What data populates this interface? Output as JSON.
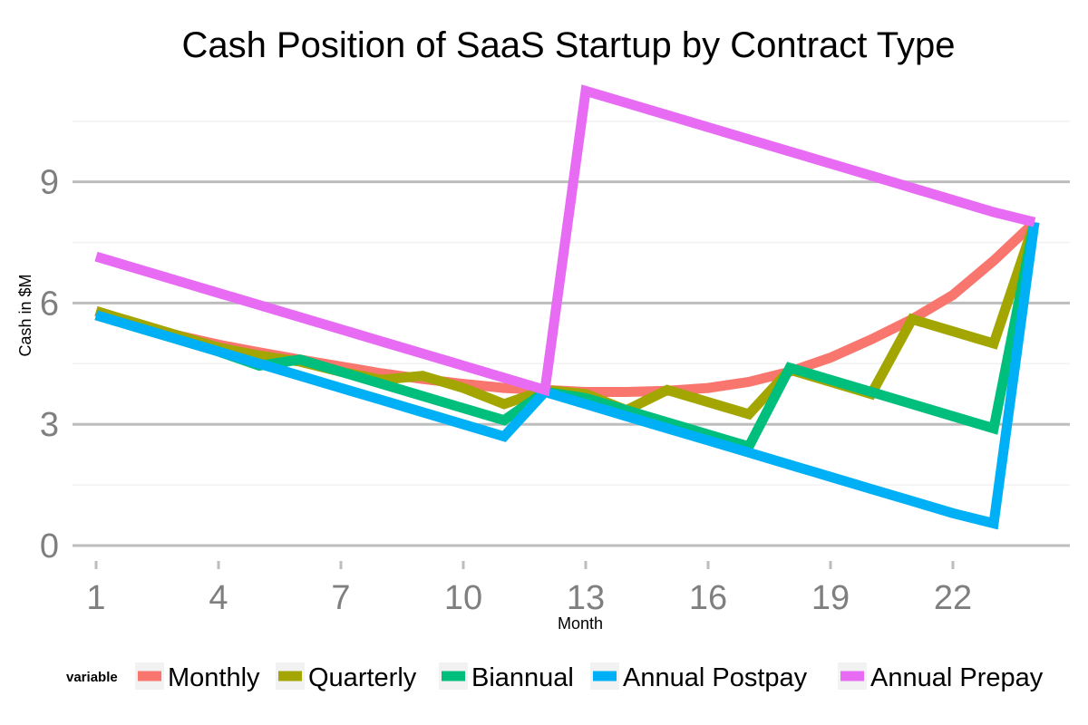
{
  "chart_data": {
    "type": "line",
    "title": "Cash Position of SaaS Startup by Contract Type",
    "xlabel": "Month",
    "ylabel": "Cash in $M",
    "xlim": [
      1,
      24
    ],
    "ylim": [
      0,
      11.3
    ],
    "xticks": [
      1,
      4,
      7,
      10,
      13,
      16,
      19,
      22
    ],
    "yticks": [
      0,
      3,
      6,
      9
    ],
    "minor_gridlines_y": [
      1.5,
      4.5,
      7.5,
      10.5
    ],
    "grid": true,
    "legend_title": "variable",
    "legend_position": "bottom",
    "x": [
      1,
      2,
      3,
      4,
      5,
      6,
      7,
      8,
      9,
      10,
      11,
      12,
      13,
      14,
      15,
      16,
      17,
      18,
      19,
      20,
      21,
      22,
      23,
      24
    ],
    "series": [
      {
        "name": "Monthly",
        "color": "#F8766D",
        "values": [
          5.8,
          5.48,
          5.2,
          4.97,
          4.78,
          4.6,
          4.43,
          4.26,
          4.12,
          4.0,
          3.9,
          3.85,
          3.8,
          3.8,
          3.83,
          3.9,
          4.05,
          4.3,
          4.65,
          5.1,
          5.6,
          6.2,
          7.05,
          8.0
        ]
      },
      {
        "name": "Quarterly",
        "color": "#A3A500",
        "values": [
          5.8,
          5.5,
          5.2,
          4.9,
          4.7,
          4.55,
          4.3,
          4.1,
          4.2,
          3.9,
          3.5,
          3.85,
          3.75,
          3.35,
          3.85,
          3.55,
          3.25,
          4.35,
          4.05,
          3.75,
          5.6,
          5.3,
          5.0,
          8.0
        ]
      },
      {
        "name": "Biannual",
        "color": "#00BF7D",
        "values": [
          5.7,
          5.4,
          5.1,
          4.8,
          4.45,
          4.6,
          4.3,
          4.0,
          3.7,
          3.4,
          3.1,
          3.8,
          3.65,
          3.35,
          3.05,
          2.75,
          2.45,
          4.4,
          4.1,
          3.8,
          3.5,
          3.2,
          2.9,
          8.0
        ]
      },
      {
        "name": "Annual Postpay",
        "color": "#00B0F6",
        "values": [
          5.7,
          5.4,
          5.1,
          4.8,
          4.5,
          4.2,
          3.9,
          3.6,
          3.3,
          3.0,
          2.7,
          3.8,
          3.5,
          3.2,
          2.9,
          2.6,
          2.3,
          2.0,
          1.7,
          1.4,
          1.1,
          0.8,
          0.55,
          8.0
        ]
      },
      {
        "name": "Annual Prepay",
        "color": "#E76BF3",
        "values": [
          7.15,
          6.85,
          6.55,
          6.25,
          5.95,
          5.65,
          5.35,
          5.05,
          4.75,
          4.45,
          4.15,
          3.85,
          11.25,
          10.95,
          10.65,
          10.35,
          10.05,
          9.75,
          9.45,
          9.15,
          8.85,
          8.55,
          8.25,
          8.0
        ]
      }
    ]
  }
}
